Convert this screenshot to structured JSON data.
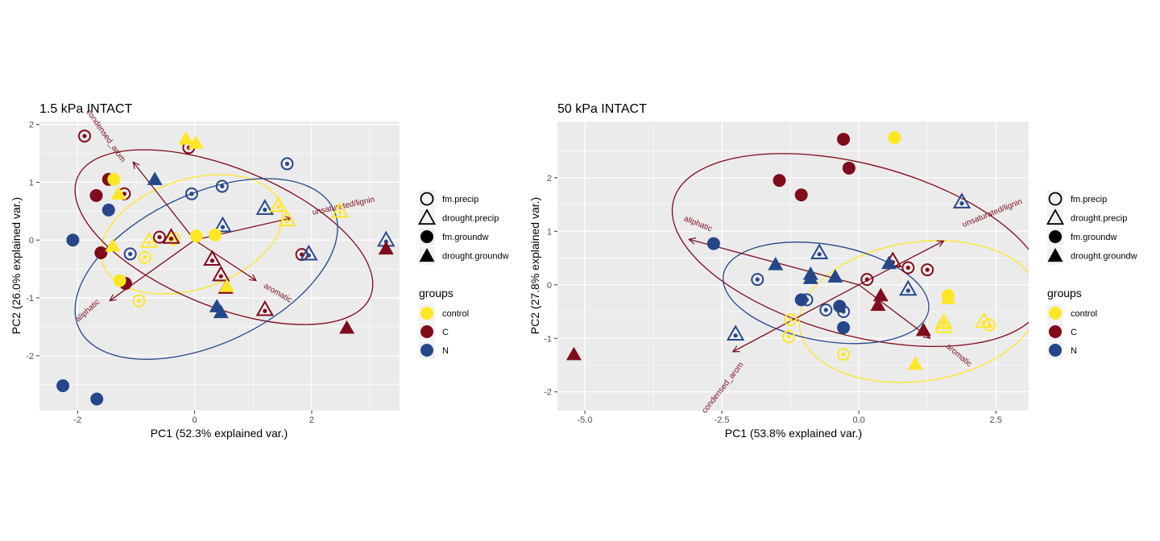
{
  "colors": {
    "control": "#fde725",
    "C": "#800b1c",
    "N": "#25478a",
    "panel": "#ebebeb",
    "grid": "#ffffff",
    "arrow": "#7b1020"
  },
  "shape_legend": {
    "items": [
      {
        "label": "fm.precip",
        "shape": "open-circle"
      },
      {
        "label": "drought.precip",
        "shape": "open-triangle"
      },
      {
        "label": "fm.groundw",
        "shape": "filled-circle"
      },
      {
        "label": "drought.groundw",
        "shape": "filled-triangle"
      }
    ]
  },
  "color_legend": {
    "title": "groups",
    "items": [
      {
        "label": "control",
        "group": "control"
      },
      {
        "label": "C",
        "group": "C"
      },
      {
        "label": "N",
        "group": "N"
      }
    ]
  },
  "chart_data": [
    {
      "type": "scatter",
      "title": "1.5 kPa INTACT",
      "xlabel": "PC1 (52.3% explained var.)",
      "ylabel": "PC2 (26.0% explained var.)",
      "xlim": [
        -2.65,
        3.5
      ],
      "ylim": [
        -2.95,
        2.05
      ],
      "xticks": [
        -2,
        0,
        2
      ],
      "yticks": [
        -2,
        -1,
        0,
        1,
        2
      ],
      "grid": true,
      "points": [
        {
          "x": -1.88,
          "y": 1.8,
          "g": "C",
          "s": "oc"
        },
        {
          "x": -1.2,
          "y": 0.8,
          "g": "C",
          "s": "oc"
        },
        {
          "x": -0.6,
          "y": 0.05,
          "g": "C",
          "s": "oc"
        },
        {
          "x": 1.83,
          "y": -0.25,
          "g": "C",
          "s": "oc"
        },
        {
          "x": -0.1,
          "y": 1.6,
          "g": "C",
          "s": "oc"
        },
        {
          "x": -1.1,
          "y": -0.24,
          "g": "N",
          "s": "oc"
        },
        {
          "x": -0.05,
          "y": 0.8,
          "g": "N",
          "s": "oc"
        },
        {
          "x": 0.47,
          "y": 0.93,
          "g": "N",
          "s": "oc"
        },
        {
          "x": 1.58,
          "y": 1.32,
          "g": "N",
          "s": "oc"
        },
        {
          "x": -0.85,
          "y": -0.3,
          "g": "control",
          "s": "oc"
        },
        {
          "x": -0.95,
          "y": -1.05,
          "g": "control",
          "s": "oc"
        },
        {
          "x": -0.35,
          "y": 0.02,
          "g": "control",
          "s": "oc"
        },
        {
          "x": -0.4,
          "y": 0.05,
          "g": "C",
          "s": "ot"
        },
        {
          "x": 0.3,
          "y": -0.33,
          "g": "C",
          "s": "ot"
        },
        {
          "x": 0.45,
          "y": -0.6,
          "g": "C",
          "s": "ot"
        },
        {
          "x": 1.2,
          "y": -1.2,
          "g": "C",
          "s": "ot"
        },
        {
          "x": 0.48,
          "y": 0.25,
          "g": "N",
          "s": "ot"
        },
        {
          "x": 1.2,
          "y": 0.55,
          "g": "N",
          "s": "ot"
        },
        {
          "x": 1.95,
          "y": -0.24,
          "g": "N",
          "s": "ot"
        },
        {
          "x": 3.27,
          "y": 0.0,
          "g": "N",
          "s": "ot"
        },
        {
          "x": -0.78,
          "y": -0.02,
          "g": "control",
          "s": "ot"
        },
        {
          "x": 1.43,
          "y": 0.6,
          "g": "control",
          "s": "ot"
        },
        {
          "x": 1.58,
          "y": 0.35,
          "g": "control",
          "s": "ot"
        },
        {
          "x": 2.48,
          "y": 0.5,
          "g": "control",
          "s": "ot"
        },
        {
          "x": -1.47,
          "y": 1.05,
          "g": "C",
          "s": "fc"
        },
        {
          "x": -1.68,
          "y": 0.77,
          "g": "C",
          "s": "fc"
        },
        {
          "x": -1.6,
          "y": -0.22,
          "g": "C",
          "s": "fc"
        },
        {
          "x": -1.18,
          "y": -0.75,
          "g": "C",
          "s": "fc"
        },
        {
          "x": -2.08,
          "y": 0.0,
          "g": "N",
          "s": "fc"
        },
        {
          "x": -1.47,
          "y": 0.52,
          "g": "N",
          "s": "fc"
        },
        {
          "x": -2.25,
          "y": -2.52,
          "g": "N",
          "s": "fc"
        },
        {
          "x": -1.67,
          "y": -2.75,
          "g": "N",
          "s": "fc"
        },
        {
          "x": -1.38,
          "y": 1.05,
          "g": "control",
          "s": "fc"
        },
        {
          "x": 0.03,
          "y": 0.07,
          "g": "control",
          "s": "fc"
        },
        {
          "x": 0.35,
          "y": 0.09,
          "g": "control",
          "s": "fc"
        },
        {
          "x": -1.28,
          "y": -0.7,
          "g": "control",
          "s": "fc"
        },
        {
          "x": 0.53,
          "y": -0.83,
          "g": "C",
          "s": "ft"
        },
        {
          "x": 2.6,
          "y": -1.52,
          "g": "C",
          "s": "ft"
        },
        {
          "x": 3.27,
          "y": -0.15,
          "g": "C",
          "s": "ft"
        },
        {
          "x": -0.68,
          "y": 1.05,
          "g": "N",
          "s": "ft"
        },
        {
          "x": 0.38,
          "y": -1.15,
          "g": "N",
          "s": "ft"
        },
        {
          "x": 0.45,
          "y": -1.25,
          "g": "N",
          "s": "ft"
        },
        {
          "x": -0.15,
          "y": 1.75,
          "g": "control",
          "s": "ft"
        },
        {
          "x": 0.02,
          "y": 1.68,
          "g": "control",
          "s": "ft"
        },
        {
          "x": -1.3,
          "y": 0.8,
          "g": "control",
          "s": "ft"
        },
        {
          "x": -1.4,
          "y": -0.1,
          "g": "control",
          "s": "ft"
        },
        {
          "x": 0.55,
          "y": -0.8,
          "g": "control",
          "s": "ft"
        }
      ],
      "ellipses": [
        {
          "group": "control",
          "cx": -0.05,
          "cy": 0.1,
          "rx": 1.6,
          "ry": 0.95,
          "angle": 18
        },
        {
          "group": "C",
          "cx": 0.5,
          "cy": 0.05,
          "rx": 2.7,
          "ry": 1.2,
          "angle": -22
        },
        {
          "group": "N",
          "cx": 0.2,
          "cy": -0.5,
          "rx": 2.4,
          "ry": 1.3,
          "angle": 25
        }
      ],
      "arrows": [
        {
          "label": "unsaturated/lignin",
          "x": 1.65,
          "y": 0.38,
          "lx": 2.55,
          "ly": 0.55,
          "rot": -12
        },
        {
          "label": "aromatic",
          "x": 1.05,
          "y": -0.7,
          "lx": 1.4,
          "ly": -0.95,
          "rot": 30
        },
        {
          "label": "aliphatic",
          "x": -1.45,
          "y": -1.05,
          "lx": -1.8,
          "ly": -1.25,
          "rot": -42
        },
        {
          "label": "condensed_arom",
          "x": -1.05,
          "y": 1.35,
          "lx": -1.55,
          "ly": 1.78,
          "rot": 55
        }
      ]
    },
    {
      "type": "scatter",
      "title": "50 kPa INTACT",
      "xlabel": "PC1 (53.8% explained var.)",
      "ylabel": "PC2 (27.8% explained var.)",
      "xlim": [
        -5.5,
        3.1
      ],
      "ylim": [
        -2.35,
        3.05
      ],
      "xticks": [
        -5.0,
        -2.5,
        0.0,
        2.5
      ],
      "yticks": [
        -2,
        -1,
        0,
        1,
        2
      ],
      "grid": true,
      "points": [
        {
          "x": 0.15,
          "y": 0.1,
          "g": "C",
          "s": "oc"
        },
        {
          "x": 0.9,
          "y": 0.32,
          "g": "C",
          "s": "oc"
        },
        {
          "x": 1.25,
          "y": 0.28,
          "g": "C",
          "s": "oc"
        },
        {
          "x": -1.85,
          "y": 0.1,
          "g": "N",
          "s": "oc"
        },
        {
          "x": -0.95,
          "y": -0.28,
          "g": "N",
          "s": "oc"
        },
        {
          "x": -0.6,
          "y": -0.47,
          "g": "N",
          "s": "oc"
        },
        {
          "x": -0.28,
          "y": -0.5,
          "g": "N",
          "s": "oc"
        },
        {
          "x": -1.25,
          "y": -0.65,
          "g": "control",
          "s": "oc"
        },
        {
          "x": -1.28,
          "y": -0.97,
          "g": "control",
          "s": "oc"
        },
        {
          "x": -0.28,
          "y": -1.3,
          "g": "control",
          "s": "oc"
        },
        {
          "x": 2.38,
          "y": -0.75,
          "g": "control",
          "s": "oc"
        },
        {
          "x": 0.62,
          "y": 0.45,
          "g": "C",
          "s": "ot"
        },
        {
          "x": -2.25,
          "y": -0.92,
          "g": "N",
          "s": "ot"
        },
        {
          "x": -0.72,
          "y": 0.6,
          "g": "N",
          "s": "ot"
        },
        {
          "x": 0.9,
          "y": -0.08,
          "g": "N",
          "s": "ot"
        },
        {
          "x": 1.88,
          "y": 1.55,
          "g": "N",
          "s": "ot"
        },
        {
          "x": 1.55,
          "y": -0.7,
          "g": "control",
          "s": "ot"
        },
        {
          "x": 1.55,
          "y": -0.78,
          "g": "control",
          "s": "ot"
        },
        {
          "x": 2.28,
          "y": -0.68,
          "g": "control",
          "s": "ot"
        },
        {
          "x": -0.28,
          "y": 2.72,
          "g": "C",
          "s": "fc"
        },
        {
          "x": -0.18,
          "y": 2.18,
          "g": "C",
          "s": "fc"
        },
        {
          "x": -1.45,
          "y": 1.95,
          "g": "C",
          "s": "fc"
        },
        {
          "x": -1.05,
          "y": 1.68,
          "g": "C",
          "s": "fc"
        },
        {
          "x": -2.65,
          "y": 0.77,
          "g": "N",
          "s": "fc"
        },
        {
          "x": -1.05,
          "y": -0.28,
          "g": "N",
          "s": "fc"
        },
        {
          "x": -0.35,
          "y": -0.4,
          "g": "N",
          "s": "fc"
        },
        {
          "x": -0.28,
          "y": -0.8,
          "g": "N",
          "s": "fc"
        },
        {
          "x": 0.65,
          "y": 2.75,
          "g": "control",
          "s": "fc"
        },
        {
          "x": 1.63,
          "y": -0.2,
          "g": "control",
          "s": "fc"
        },
        {
          "x": -5.2,
          "y": -1.3,
          "g": "C",
          "s": "ft"
        },
        {
          "x": 0.4,
          "y": -0.2,
          "g": "C",
          "s": "ft"
        },
        {
          "x": 0.35,
          "y": -0.38,
          "g": "C",
          "s": "ft"
        },
        {
          "x": 1.18,
          "y": -0.85,
          "g": "C",
          "s": "ft"
        },
        {
          "x": -1.52,
          "y": 0.38,
          "g": "N",
          "s": "ft"
        },
        {
          "x": -0.88,
          "y": 0.2,
          "g": "N",
          "s": "ft"
        },
        {
          "x": -0.88,
          "y": 0.12,
          "g": "N",
          "s": "ft"
        },
        {
          "x": -0.43,
          "y": 0.15,
          "g": "N",
          "s": "ft"
        },
        {
          "x": 0.55,
          "y": 0.4,
          "g": "N",
          "s": "ft"
        },
        {
          "x": 1.63,
          "y": -0.25,
          "g": "control",
          "s": "ft"
        },
        {
          "x": 1.03,
          "y": -1.48,
          "g": "control",
          "s": "ft"
        }
      ],
      "ellipses": [
        {
          "group": "C",
          "cx": 0.0,
          "cy": 0.65,
          "rx": 3.5,
          "ry": 1.6,
          "angle": -15
        },
        {
          "group": "control",
          "cx": 1.1,
          "cy": -0.5,
          "rx": 2.2,
          "ry": 1.3,
          "angle": 8
        },
        {
          "group": "N",
          "cx": -0.6,
          "cy": -0.15,
          "rx": 1.9,
          "ry": 0.9,
          "angle": -10
        }
      ],
      "arrows": [
        {
          "label": "unsaturated/lignin",
          "x": 1.55,
          "y": 0.82,
          "lx": 2.45,
          "ly": 1.3,
          "rot": -22
        },
        {
          "label": "aromatic",
          "x": 1.3,
          "y": -1.0,
          "lx": 1.8,
          "ly": -1.35,
          "rot": 40
        },
        {
          "label": "aliphatic",
          "x": -3.1,
          "y": 0.85,
          "lx": -2.95,
          "ly": 1.1,
          "rot": 22
        },
        {
          "label": "condensed_arom",
          "x": -2.3,
          "y": -1.25,
          "lx": -2.45,
          "ly": -1.95,
          "rot": -52
        }
      ]
    }
  ]
}
